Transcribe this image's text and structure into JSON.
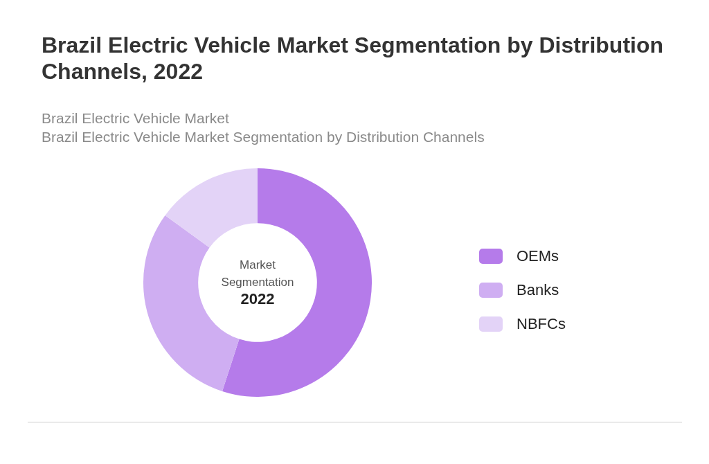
{
  "chart_data": {
    "type": "donut",
    "title": "Brazil Electric Vehicle Market Segmentation by Distribution Channels, 2022",
    "subtitle": "Brazil Electric Vehicle Market\nBrazil Electric Vehicle Market Segmentation by Distribution Channels",
    "categories": [
      "OEMs",
      "Banks",
      "NBFCs"
    ],
    "values": [
      55,
      30,
      15
    ],
    "colors": [
      "#b57bea",
      "#cfaef2",
      "#e3d3f7"
    ],
    "legend": "right",
    "annotations": [
      "Market Segmentation",
      "2022"
    ]
  }
}
